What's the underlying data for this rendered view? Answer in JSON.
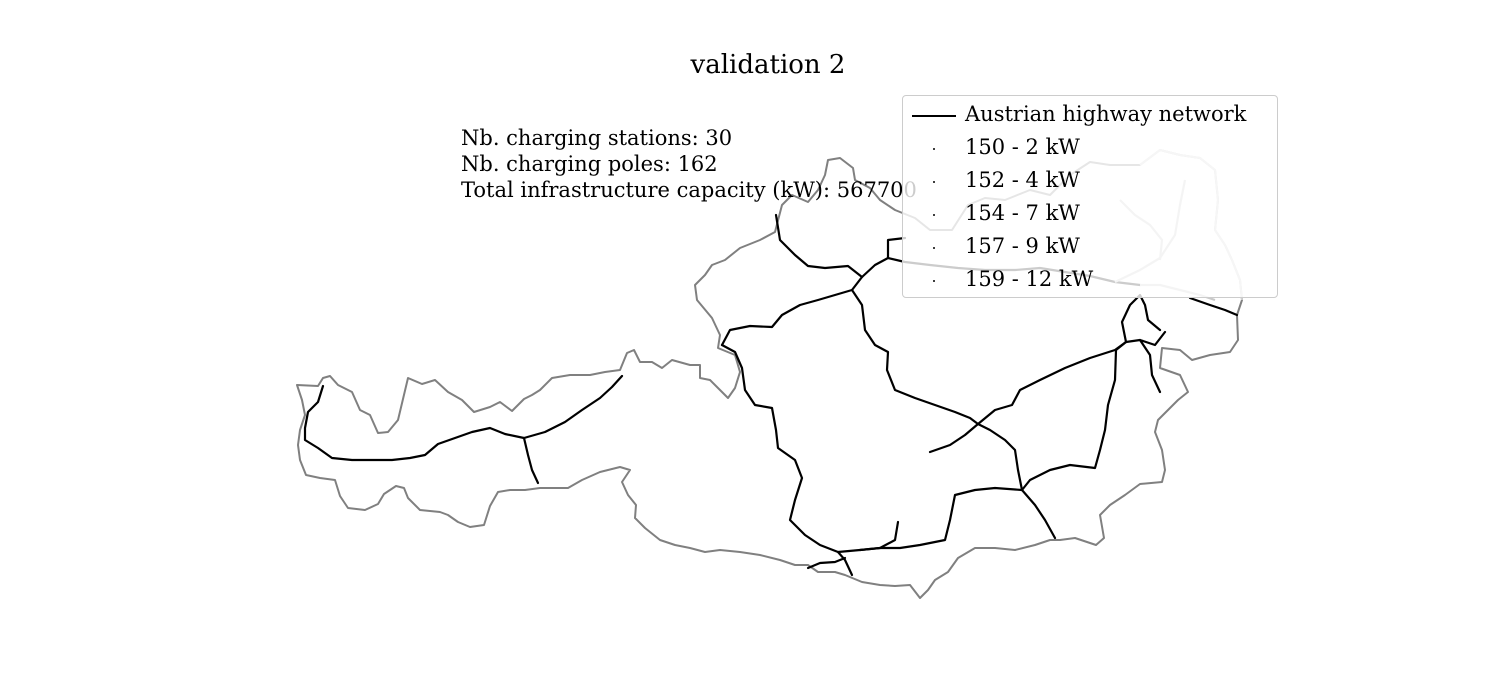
{
  "title": "validation 2",
  "stats": {
    "stations": "Nb. charging stations: 30",
    "poles": "Nb. charging poles: 162",
    "capacity": "Total infrastructure capacity (kW): 567700"
  },
  "legend": {
    "network": "Austrian highway network",
    "classes": [
      "150 - 2 kW",
      "152 - 4 kW",
      "154 - 7 kW",
      "157 - 9 kW",
      "159 - 12 kW"
    ]
  },
  "colors": {
    "border": "#808080",
    "highway": "#000000"
  }
}
